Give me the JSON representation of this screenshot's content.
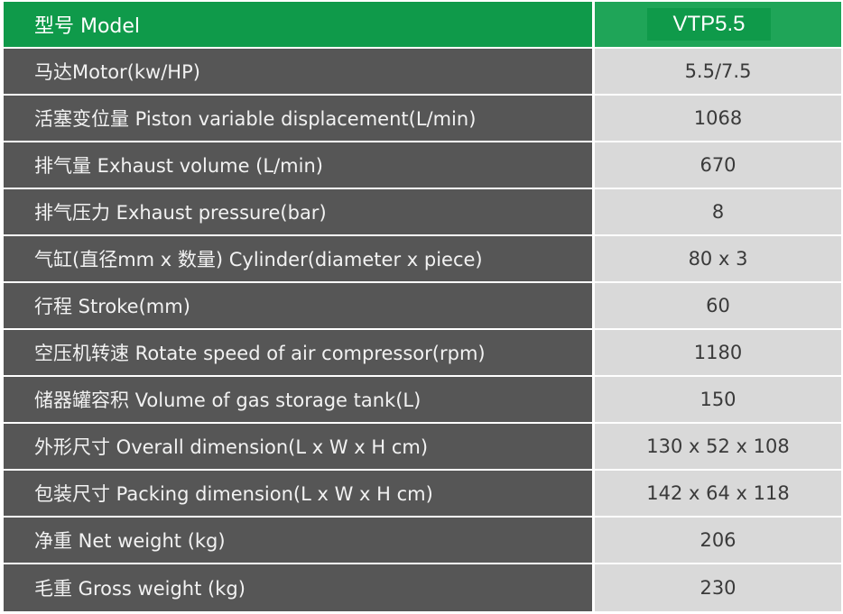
{
  "header": {
    "label": "型号 Model",
    "value": "VTP5.5"
  },
  "rows": [
    {
      "label": "马达Motor(kw/HP)",
      "value": "5.5/7.5"
    },
    {
      "label": "活塞变位量 Piston variable displacement(L/min)",
      "value": "1068"
    },
    {
      "label": "排气量 Exhaust volume (L/min)",
      "value": "670"
    },
    {
      "label": "排气压力 Exhaust pressure(bar)",
      "value": "8"
    },
    {
      "label": "气缸(直径mm x 数量) Cylinder(diameter x piece)",
      "value": "80 x 3"
    },
    {
      "label": "行程 Stroke(mm)",
      "value": "60"
    },
    {
      "label": "空压机转速 Rotate speed of air compressor(rpm)",
      "value": "1180"
    },
    {
      "label": "储器罐容积 Volume of gas storage tank(L)",
      "value": "150"
    },
    {
      "label": "外形尺寸 Overall dimension(L x W x H cm)",
      "value": "130 x 52 x 108"
    },
    {
      "label": "包装尺寸 Packing dimension(L x W x H cm)",
      "value": "142 x 64 x 118"
    },
    {
      "label": "净重 Net weight (kg)",
      "value": "206"
    },
    {
      "label": "毛重 Gross weight (kg)",
      "value": "230"
    }
  ],
  "colors": {
    "header_green": "#0f9a4a",
    "label_bg": "#565656",
    "value_bg": "#d9d9d9"
  }
}
